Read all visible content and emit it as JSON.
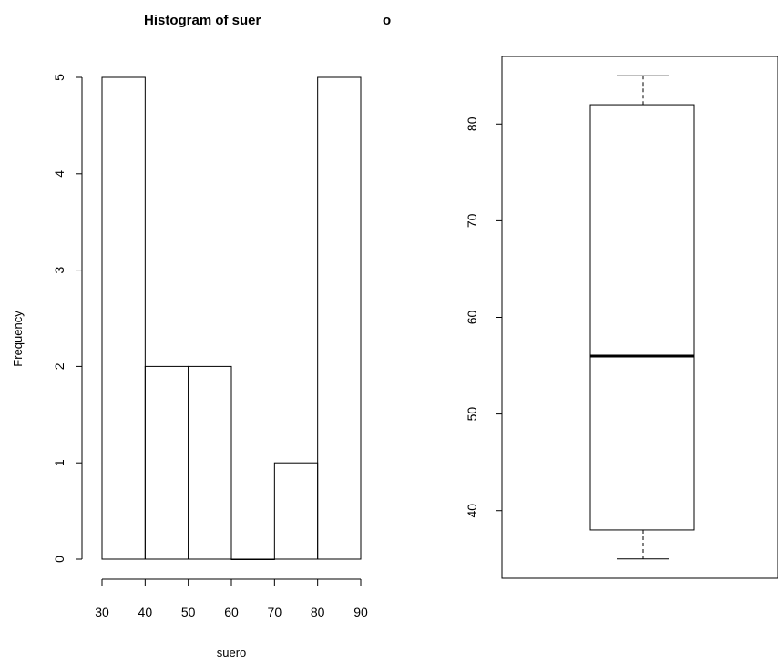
{
  "chart_data": [
    {
      "type": "bar",
      "title_part1": "Histogram of suer",
      "title_part2": "o",
      "xlabel": "suero",
      "ylabel": "Frequency",
      "bins": [
        {
          "from": 30,
          "to": 40,
          "count": 5
        },
        {
          "from": 40,
          "to": 50,
          "count": 2
        },
        {
          "from": 50,
          "to": 60,
          "count": 2
        },
        {
          "from": 60,
          "to": 70,
          "count": 0
        },
        {
          "from": 70,
          "to": 80,
          "count": 1
        },
        {
          "from": 80,
          "to": 90,
          "count": 5
        }
      ],
      "xticks": [
        30,
        40,
        50,
        60,
        70,
        80,
        90
      ],
      "yticks": [
        0,
        1,
        2,
        3,
        4,
        5
      ],
      "xlim": [
        30,
        90
      ],
      "ylim": [
        0,
        5
      ]
    },
    {
      "type": "boxplot",
      "min": 35,
      "q1": 38,
      "median": 56,
      "q3": 82,
      "max": 85,
      "yticks": [
        40,
        50,
        60,
        70,
        80
      ],
      "ylim": [
        33,
        87
      ]
    }
  ]
}
